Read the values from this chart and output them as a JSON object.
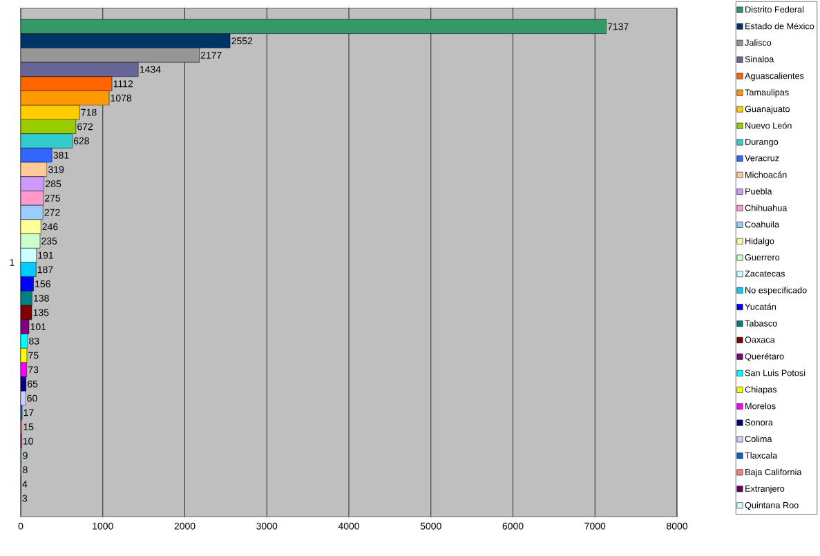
{
  "chart_data": {
    "type": "bar",
    "orientation": "horizontal",
    "categories": [
      "1"
    ],
    "xlim": [
      0,
      8000
    ],
    "xticks": [
      0,
      1000,
      2000,
      3000,
      4000,
      5000,
      6000,
      7000,
      8000
    ],
    "grid": "x",
    "legend": "right",
    "data_labels": true,
    "series": [
      {
        "name": "Distrito Federal",
        "color": "#339966",
        "values": [
          7137
        ]
      },
      {
        "name": "Estado de México",
        "color": "#003366",
        "values": [
          2552
        ]
      },
      {
        "name": "Jalisco",
        "color": "#969696",
        "values": [
          2177
        ]
      },
      {
        "name": "Sinaloa",
        "color": "#666699",
        "values": [
          1434
        ]
      },
      {
        "name": "Aguascalientes",
        "color": "#ff6600",
        "values": [
          1112
        ]
      },
      {
        "name": "Tamaulipas",
        "color": "#ff9900",
        "values": [
          1078
        ]
      },
      {
        "name": "Guanajuato",
        "color": "#ffcc00",
        "values": [
          718
        ]
      },
      {
        "name": "Nuevo León",
        "color": "#99cc00",
        "values": [
          672
        ]
      },
      {
        "name": "Durango",
        "color": "#33cccc",
        "values": [
          628
        ]
      },
      {
        "name": "Veracruz",
        "color": "#3366ff",
        "values": [
          381
        ]
      },
      {
        "name": "Michoacán",
        "color": "#ffcc99",
        "values": [
          319
        ]
      },
      {
        "name": "Puebla",
        "color": "#cc99ff",
        "values": [
          285
        ]
      },
      {
        "name": "Chihuahua",
        "color": "#ff99cc",
        "values": [
          275
        ]
      },
      {
        "name": "Coahuila",
        "color": "#99ccff",
        "values": [
          272
        ]
      },
      {
        "name": "Hidalgo",
        "color": "#ffff99",
        "values": [
          246
        ]
      },
      {
        "name": "Guerrero",
        "color": "#ccffcc",
        "values": [
          235
        ]
      },
      {
        "name": "Zacatecas",
        "color": "#ccffff",
        "values": [
          191
        ]
      },
      {
        "name": "No especificado",
        "color": "#00ccff",
        "values": [
          187
        ]
      },
      {
        "name": "Yucatán",
        "color": "#0000ff",
        "values": [
          156
        ]
      },
      {
        "name": "Tabasco",
        "color": "#008080",
        "values": [
          138
        ]
      },
      {
        "name": "Oaxaca",
        "color": "#800000",
        "values": [
          135
        ]
      },
      {
        "name": "Querétaro",
        "color": "#800080",
        "values": [
          101
        ]
      },
      {
        "name": "San Luis Potosi",
        "color": "#00ffff",
        "values": [
          83
        ]
      },
      {
        "name": "Chiapas",
        "color": "#ffff00",
        "values": [
          75
        ]
      },
      {
        "name": "Morelos",
        "color": "#ff00ff",
        "values": [
          73
        ]
      },
      {
        "name": "Sonora",
        "color": "#000080",
        "values": [
          65
        ]
      },
      {
        "name": "Colima",
        "color": "#ccccff",
        "values": [
          60
        ]
      },
      {
        "name": "Tlaxcala",
        "color": "#0066cc",
        "values": [
          17
        ]
      },
      {
        "name": "Baja California",
        "color": "#ff8080",
        "values": [
          15
        ]
      },
      {
        "name": "Extranjero",
        "color": "#660066",
        "values": [
          10
        ]
      },
      {
        "name": "Quintana Roo",
        "color": "#ccffff",
        "values": [
          9
        ]
      },
      {
        "color": "#ffffcc",
        "values": [
          8
        ]
      },
      {
        "color": "#993366",
        "values": [
          4
        ]
      },
      {
        "color": "#9999ff",
        "values": [
          3
        ]
      }
    ]
  }
}
